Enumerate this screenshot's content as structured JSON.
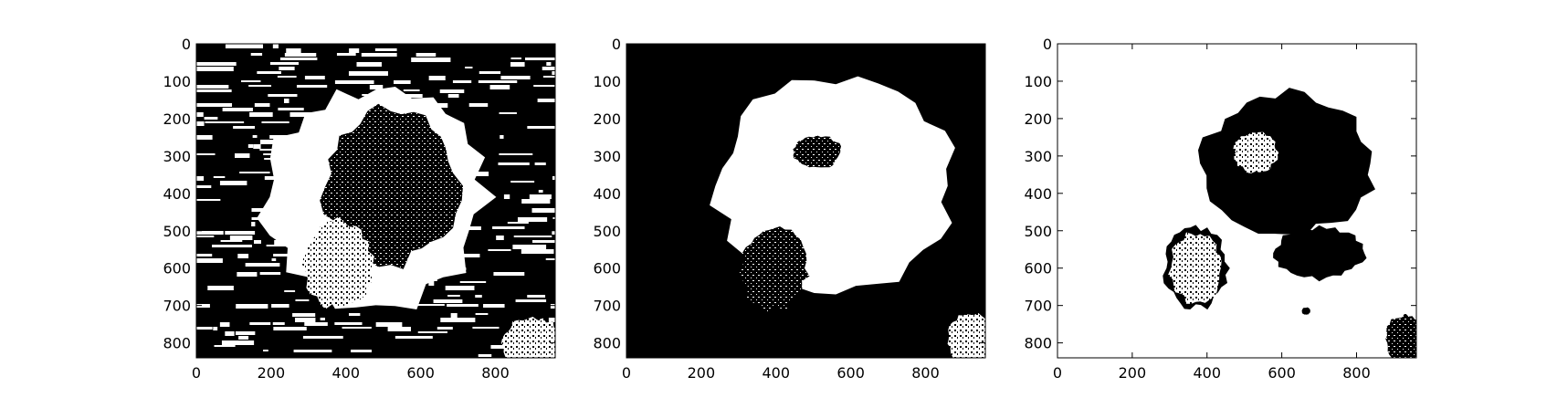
{
  "chart_data": [
    {
      "type": "heatmap",
      "title": "",
      "xlabel": "",
      "ylabel": "",
      "xlim": [
        0,
        960
      ],
      "ylim": [
        840,
        0
      ],
      "xticks": [
        0,
        200,
        400,
        600,
        800
      ],
      "yticks": [
        0,
        100,
        200,
        300,
        400,
        500,
        600,
        700,
        800
      ],
      "xtick_labels": [
        "0",
        "200",
        "400",
        "600",
        "800"
      ],
      "ytick_labels": [
        "0",
        "100",
        "200",
        "300",
        "400",
        "500",
        "600",
        "700",
        "800"
      ],
      "colormap": "binary",
      "background_color": "#000000",
      "foreground_color": "#ffffff",
      "pattern": "horizontal-banding-noise",
      "regions": [
        {
          "shape": "blob",
          "cx": 480,
          "cy": 410,
          "rx": 300,
          "ry": 300,
          "value": "white"
        },
        {
          "shape": "blob",
          "cx": 520,
          "cy": 380,
          "rx": 180,
          "ry": 210,
          "value": "black-textured"
        },
        {
          "shape": "blob",
          "cx": 380,
          "cy": 590,
          "rx": 95,
          "ry": 120,
          "value": "white-textured"
        },
        {
          "shape": "blob",
          "cx": 900,
          "cy": 800,
          "rx": 80,
          "ry": 70,
          "value": "white-textured"
        }
      ]
    },
    {
      "type": "heatmap",
      "title": "",
      "xlabel": "",
      "ylabel": "",
      "xlim": [
        0,
        960
      ],
      "ylim": [
        840,
        0
      ],
      "xticks": [
        0,
        200,
        400,
        600,
        800
      ],
      "yticks": [
        0,
        100,
        200,
        300,
        400,
        500,
        600,
        700,
        800
      ],
      "xtick_labels": [
        "0",
        "200",
        "400",
        "600",
        "800"
      ],
      "ytick_labels": [
        "0",
        "100",
        "200",
        "300",
        "400",
        "500",
        "600",
        "700",
        "800"
      ],
      "colormap": "binary",
      "background_color": "#000000",
      "foreground_color": "#ffffff",
      "pattern": "solid",
      "regions": [
        {
          "shape": "blob",
          "cx": 560,
          "cy": 380,
          "rx": 320,
          "ry": 280,
          "value": "white"
        },
        {
          "shape": "blob",
          "cx": 395,
          "cy": 600,
          "rx": 90,
          "ry": 115,
          "value": "black-textured"
        },
        {
          "shape": "blob",
          "cx": 510,
          "cy": 290,
          "rx": 65,
          "ry": 45,
          "value": "black-textured"
        },
        {
          "shape": "blob",
          "cx": 920,
          "cy": 790,
          "rx": 60,
          "ry": 70,
          "value": "white-textured"
        }
      ]
    },
    {
      "type": "heatmap",
      "title": "",
      "xlabel": "",
      "ylabel": "",
      "xlim": [
        0,
        960
      ],
      "ylim": [
        840,
        0
      ],
      "xticks": [
        0,
        200,
        400,
        600,
        800
      ],
      "yticks": [
        0,
        100,
        200,
        300,
        400,
        500,
        600,
        700,
        800
      ],
      "xtick_labels": [
        "0",
        "200",
        "400",
        "600",
        "800"
      ],
      "ytick_labels": [
        "0",
        "100",
        "200",
        "300",
        "400",
        "500",
        "600",
        "700",
        "800"
      ],
      "colormap": "binary",
      "background_color": "#ffffff",
      "foreground_color": "#000000",
      "pattern": "solid",
      "regions": [
        {
          "shape": "blob",
          "cx": 620,
          "cy": 320,
          "rx": 230,
          "ry": 190,
          "value": "black"
        },
        {
          "shape": "blob",
          "cx": 700,
          "cy": 560,
          "rx": 120,
          "ry": 70,
          "value": "black"
        },
        {
          "shape": "blob",
          "cx": 370,
          "cy": 600,
          "rx": 85,
          "ry": 110,
          "value": "black"
        },
        {
          "shape": "blob",
          "cx": 530,
          "cy": 290,
          "rx": 60,
          "ry": 55,
          "value": "white-textured"
        },
        {
          "shape": "blob",
          "cx": 370,
          "cy": 600,
          "rx": 70,
          "ry": 95,
          "value": "white-textured"
        },
        {
          "shape": "blob",
          "cx": 665,
          "cy": 715,
          "rx": 12,
          "ry": 10,
          "value": "black"
        },
        {
          "shape": "blob",
          "cx": 930,
          "cy": 790,
          "rx": 55,
          "ry": 65,
          "value": "black-textured"
        }
      ]
    }
  ]
}
